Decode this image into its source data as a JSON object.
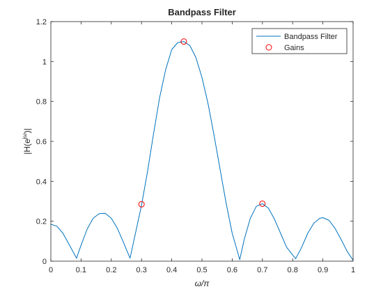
{
  "chart_data": {
    "type": "line",
    "title": "Bandpass Filter",
    "xlabel": "ω/π",
    "ylabel": "|H(e^jω)|",
    "ylabel_main": "|H(e",
    "ylabel_sup": "jω",
    "ylabel_tail": ")|",
    "xlim": [
      0,
      1
    ],
    "ylim": [
      0,
      1.2
    ],
    "xticks": [
      0,
      0.1,
      0.2,
      0.3,
      0.4,
      0.5,
      0.6,
      0.7,
      0.8,
      0.9,
      1
    ],
    "xtick_labels": [
      "0",
      "0.1",
      "0.2",
      "0.3",
      "0.4",
      "0.5",
      "0.6",
      "0.7",
      "0.8",
      "0.9",
      "1"
    ],
    "yticks": [
      0,
      0.2,
      0.4,
      0.6,
      0.8,
      1,
      1.2
    ],
    "ytick_labels": [
      "0",
      "0.2",
      "0.4",
      "0.6",
      "0.8",
      "1",
      "1.2"
    ],
    "grid": false,
    "legend_position": "top-right",
    "series": [
      {
        "name": "Bandpass Filter",
        "style": "line",
        "color": "#0072BD",
        "x": [
          0,
          0.02,
          0.04,
          0.06,
          0.085,
          0.1,
          0.12,
          0.14,
          0.16,
          0.18,
          0.2,
          0.22,
          0.24,
          0.262,
          0.28,
          0.3,
          0.32,
          0.34,
          0.36,
          0.38,
          0.4,
          0.42,
          0.44,
          0.46,
          0.48,
          0.5,
          0.52,
          0.54,
          0.56,
          0.58,
          0.6,
          0.625,
          0.64,
          0.66,
          0.68,
          0.7,
          0.72,
          0.74,
          0.76,
          0.78,
          0.81,
          0.83,
          0.85,
          0.87,
          0.89,
          0.9,
          0.92,
          0.94,
          0.96,
          0.98,
          1
        ],
        "y": [
          0.185,
          0.175,
          0.14,
          0.085,
          0.015,
          0.08,
          0.16,
          0.215,
          0.238,
          0.24,
          0.215,
          0.165,
          0.095,
          0.015,
          0.14,
          0.28,
          0.45,
          0.64,
          0.82,
          0.96,
          1.06,
          1.095,
          1.1,
          1.08,
          1.02,
          0.92,
          0.79,
          0.63,
          0.46,
          0.29,
          0.14,
          0.008,
          0.11,
          0.215,
          0.275,
          0.288,
          0.265,
          0.21,
          0.14,
          0.07,
          0.012,
          0.07,
          0.14,
          0.19,
          0.215,
          0.218,
          0.205,
          0.165,
          0.11,
          0.05,
          0.005
        ]
      },
      {
        "name": "Gains",
        "style": "markers",
        "marker": "circle",
        "color": "#FF0000",
        "x": [
          0.3,
          0.44,
          0.7
        ],
        "y": [
          0.285,
          1.1,
          0.288
        ]
      }
    ]
  }
}
